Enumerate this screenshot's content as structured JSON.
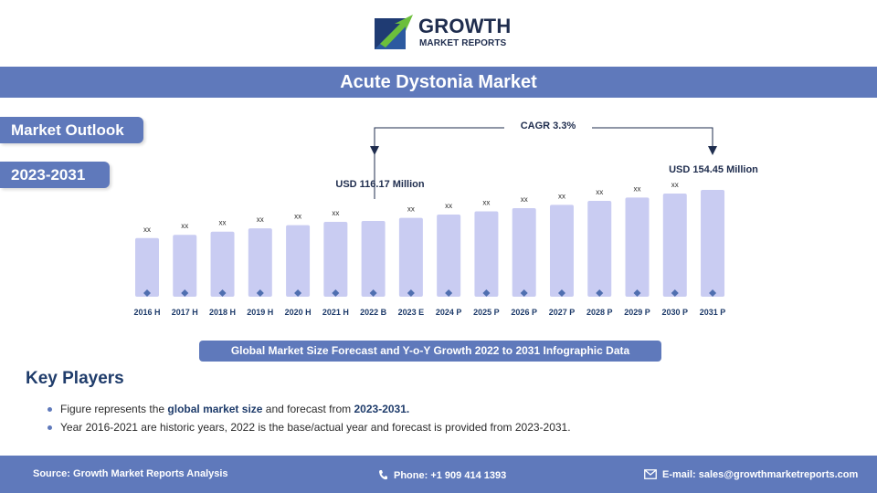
{
  "logo": {
    "word1": "GROWTH",
    "word2": "MARKET REPORTS"
  },
  "title": "Acute Dystonia Market",
  "badges": {
    "outlook": "Market Outlook",
    "period": "2023-2031"
  },
  "chart_data": {
    "type": "bar",
    "categories": [
      "2016 H",
      "2017 H",
      "2018 H",
      "2019 H",
      "2020 H",
      "2021 H",
      "2022 B",
      "2023 E",
      "2024 P",
      "2025 P",
      "2026 P",
      "2027 P",
      "2028 P",
      "2029 P",
      "2030 P",
      "2031 P"
    ],
    "values": [
      95,
      99,
      103,
      107,
      111,
      115,
      116.17,
      120,
      124,
      128,
      132,
      136,
      141,
      145,
      150,
      154.45
    ],
    "data_labels": [
      "xx",
      "xx",
      "xx",
      "xx",
      "xx",
      "xx",
      "",
      "xx",
      "xx",
      "xx",
      "xx",
      "xx",
      "xx",
      "xx",
      "xx",
      ""
    ],
    "annotations": {
      "cagr": "CAGR 3.3%",
      "start_value": "USD 116.17 Million",
      "end_value": "USD 154.45 Million"
    },
    "colors": {
      "bar": "#c9ccf2",
      "marker": "#4f6fb0"
    }
  },
  "caption": "Global Market Size Forecast and Y-o-Y Growth 2022 to 2031 Infographic Data",
  "key_players": {
    "heading": "Key Players",
    "bullet1_a": "Figure represents the ",
    "bullet1_b": "global market size",
    "bullet1_c": " and forecast from ",
    "bullet1_d": "2023-2031.",
    "bullet2": "Year 2016-2021 are historic years, 2022 is the base/actual year and forecast is provided from 2023-2031."
  },
  "footer": {
    "source": "Source: Growth Market Reports Analysis",
    "phone": "Phone: +1 909 414 1393",
    "email": "E-mail: sales@growthmarketreports.com",
    "phone_icon": "phone-icon",
    "email_icon": "mail-icon"
  },
  "theme": {
    "primary": "#5f79bb",
    "logo_green": "#6cbf3b",
    "logo_navy": "#1f2d4e"
  }
}
